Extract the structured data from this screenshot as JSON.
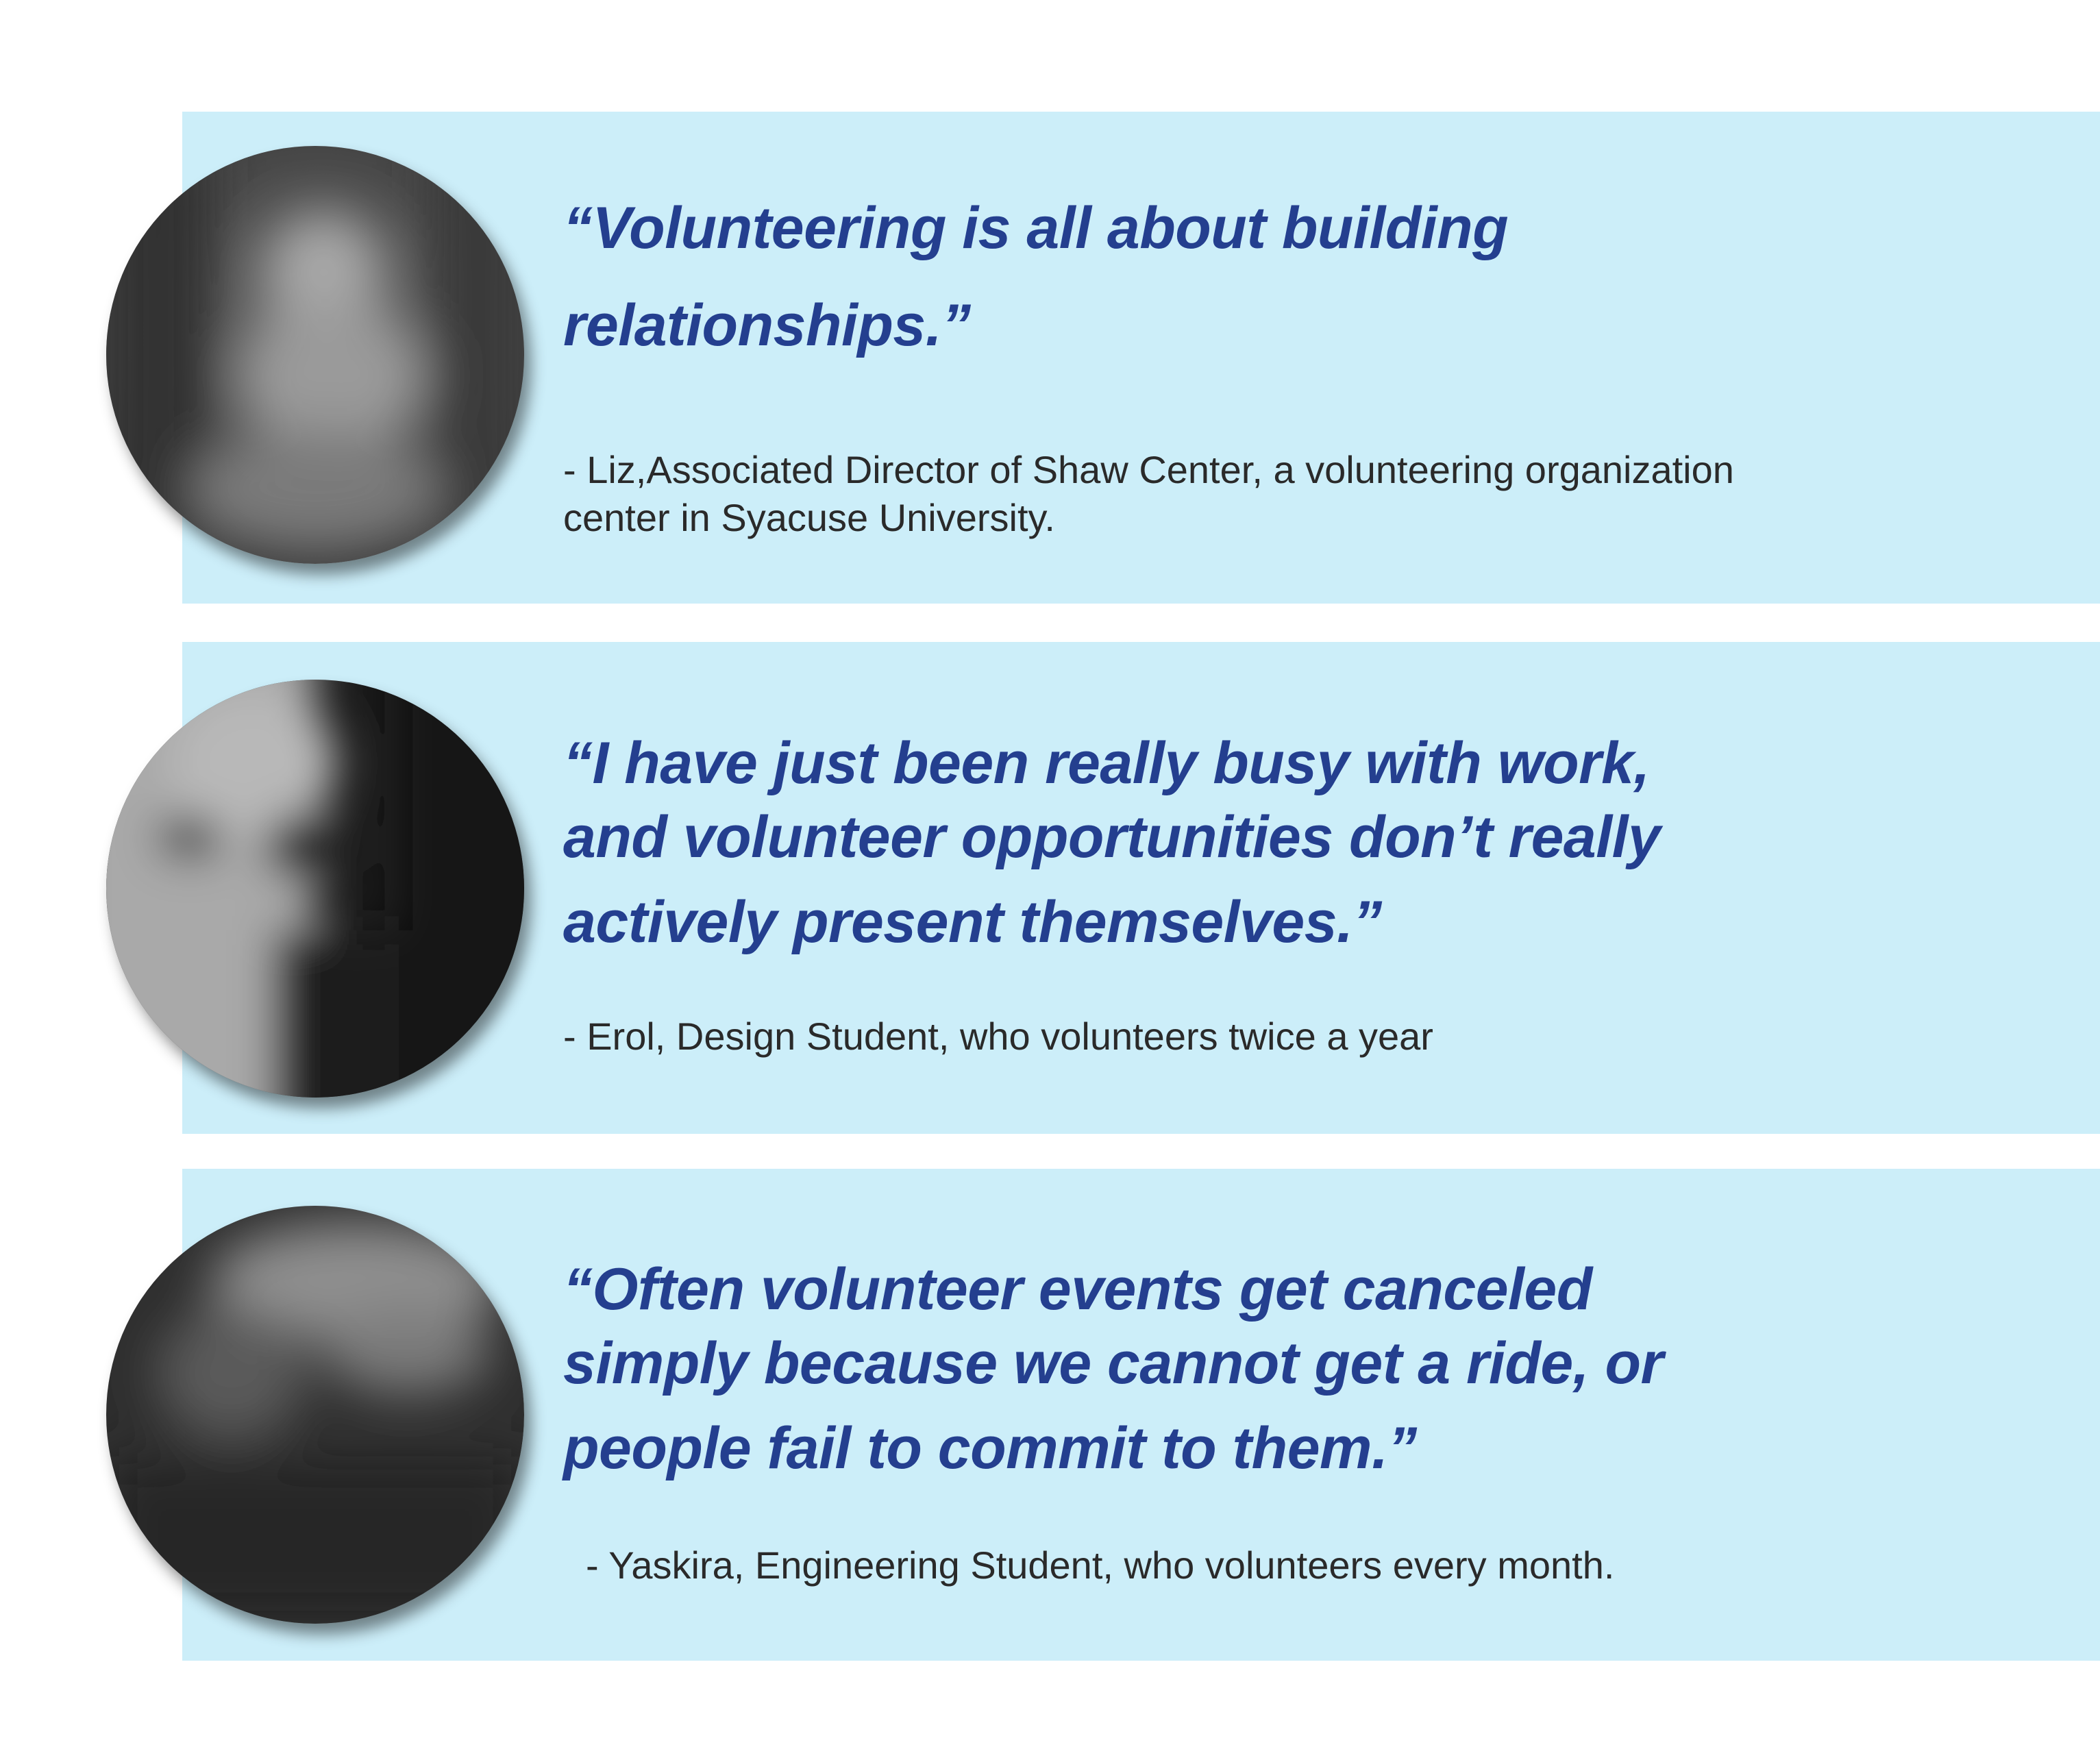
{
  "testimonials": [
    {
      "quote_lines": [
        "“Volunteering is all about building",
        "relationships.”"
      ],
      "attribution_lines": [
        "- Liz,Associated Director of Shaw Center, a volunteering organization",
        "center in Syacuse University."
      ],
      "avatar_icon": "blurred-portrait-photo"
    },
    {
      "quote_lines": [
        "“I have just been really busy with work,",
        "and volunteer opportunities don’t really",
        "actively present themselves.”"
      ],
      "attribution_lines": [
        "- Erol, Design Student, who volunteers twice a year"
      ],
      "avatar_icon": "blurred-portrait-photo"
    },
    {
      "quote_lines": [
        "“Often volunteer events get canceled",
        "simply because we cannot get a ride, or",
        "people fail to commit to them.”"
      ],
      "attribution_lines": [
        "- Yaskira, Engineering Student, who volunteers every month."
      ],
      "avatar_icon": "blurred-portrait-photo"
    }
  ],
  "colors": {
    "band_background": "#cceef9",
    "quote_text": "#243f8f",
    "attribution_text": "#2a2a2a",
    "page_background": "#ffffff"
  }
}
